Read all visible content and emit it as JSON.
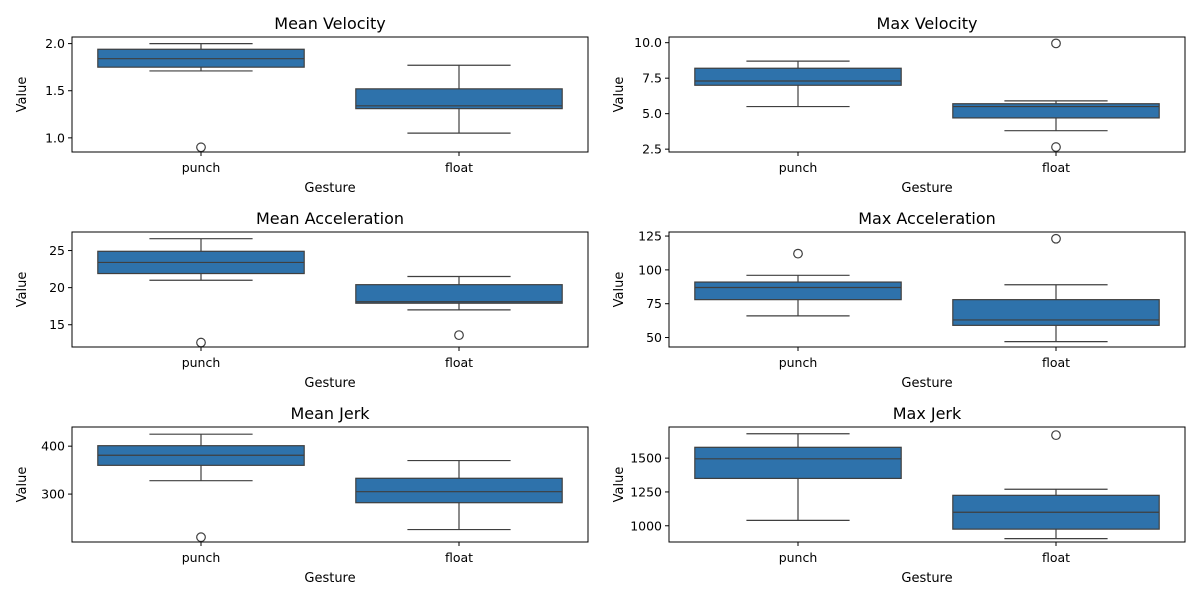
{
  "chart_data": [
    {
      "type": "box",
      "title": "Mean Velocity",
      "xlabel": "Gesture",
      "ylabel": "Value",
      "categories": [
        "punch",
        "float"
      ],
      "ylim": [
        0.85,
        2.07
      ],
      "yticks": [
        1.0,
        1.5,
        2.0
      ],
      "ytick_labels": [
        "1.0",
        "1.5",
        "2.0"
      ],
      "color": "#2e72ab",
      "boxes": [
        {
          "category": "punch",
          "whisker_low": 1.71,
          "q1": 1.75,
          "median": 1.84,
          "q3": 1.94,
          "whisker_high": 2.0,
          "outliers": [
            0.9
          ]
        },
        {
          "category": "float",
          "whisker_low": 1.05,
          "q1": 1.31,
          "median": 1.34,
          "q3": 1.52,
          "whisker_high": 1.77,
          "outliers": []
        }
      ]
    },
    {
      "type": "box",
      "title": "Max Velocity",
      "xlabel": "Gesture",
      "ylabel": "Value",
      "categories": [
        "punch",
        "float"
      ],
      "ylim": [
        2.3,
        10.4
      ],
      "yticks": [
        2.5,
        5.0,
        7.5,
        10.0
      ],
      "ytick_labels": [
        "2.5",
        "5.0",
        "7.5",
        "10.0"
      ],
      "color": "#2e72ab",
      "boxes": [
        {
          "category": "punch",
          "whisker_low": 5.5,
          "q1": 7.0,
          "median": 7.3,
          "q3": 8.2,
          "whisker_high": 8.7,
          "outliers": []
        },
        {
          "category": "float",
          "whisker_low": 3.8,
          "q1": 4.7,
          "median": 5.5,
          "q3": 5.7,
          "whisker_high": 5.9,
          "outliers": [
            9.95,
            2.65
          ]
        }
      ]
    },
    {
      "type": "box",
      "title": "Mean Acceleration",
      "xlabel": "Gesture",
      "ylabel": "Value",
      "categories": [
        "punch",
        "float"
      ],
      "ylim": [
        12.0,
        27.5
      ],
      "yticks": [
        15,
        20,
        25
      ],
      "ytick_labels": [
        "15",
        "20",
        "25"
      ],
      "color": "#2e72ab",
      "boxes": [
        {
          "category": "punch",
          "whisker_low": 21.0,
          "q1": 21.9,
          "median": 23.4,
          "q3": 24.9,
          "whisker_high": 26.6,
          "outliers": [
            12.6
          ]
        },
        {
          "category": "float",
          "whisker_low": 17.0,
          "q1": 17.9,
          "median": 18.1,
          "q3": 20.4,
          "whisker_high": 21.5,
          "outliers": [
            13.6
          ]
        }
      ]
    },
    {
      "type": "box",
      "title": "Max Acceleration",
      "xlabel": "Gesture",
      "ylabel": "Value",
      "categories": [
        "punch",
        "float"
      ],
      "ylim": [
        43,
        128
      ],
      "yticks": [
        50,
        75,
        100,
        125
      ],
      "ytick_labels": [
        "50",
        "75",
        "100",
        "125"
      ],
      "color": "#2e72ab",
      "boxes": [
        {
          "category": "punch",
          "whisker_low": 66,
          "q1": 78,
          "median": 87,
          "q3": 91,
          "whisker_high": 96,
          "outliers": [
            112
          ]
        },
        {
          "category": "float",
          "whisker_low": 47,
          "q1": 59,
          "median": 63,
          "q3": 78,
          "whisker_high": 89,
          "outliers": [
            123
          ]
        }
      ]
    },
    {
      "type": "box",
      "title": "Mean Jerk",
      "xlabel": "Gesture",
      "ylabel": "Value",
      "categories": [
        "punch",
        "float"
      ],
      "ylim": [
        200,
        440
      ],
      "yticks": [
        300,
        400
      ],
      "ytick_labels": [
        "300",
        "400"
      ],
      "color": "#2e72ab",
      "boxes": [
        {
          "category": "punch",
          "whisker_low": 328,
          "q1": 360,
          "median": 381,
          "q3": 401,
          "whisker_high": 425,
          "outliers": [
            210
          ]
        },
        {
          "category": "float",
          "whisker_low": 226,
          "q1": 282,
          "median": 305,
          "q3": 333,
          "whisker_high": 370,
          "outliers": []
        }
      ]
    },
    {
      "type": "box",
      "title": "Max Jerk",
      "xlabel": "Gesture",
      "ylabel": "Value",
      "categories": [
        "punch",
        "float"
      ],
      "ylim": [
        880,
        1730
      ],
      "yticks": [
        1000,
        1250,
        1500
      ],
      "ytick_labels": [
        "1000",
        "1250",
        "1500"
      ],
      "color": "#2e72ab",
      "boxes": [
        {
          "category": "punch",
          "whisker_low": 1040,
          "q1": 1350,
          "median": 1495,
          "q3": 1580,
          "whisker_high": 1680,
          "outliers": []
        },
        {
          "category": "float",
          "whisker_low": 905,
          "q1": 975,
          "median": 1100,
          "q3": 1225,
          "whisker_high": 1270,
          "outliers": [
            1670
          ]
        }
      ]
    }
  ]
}
